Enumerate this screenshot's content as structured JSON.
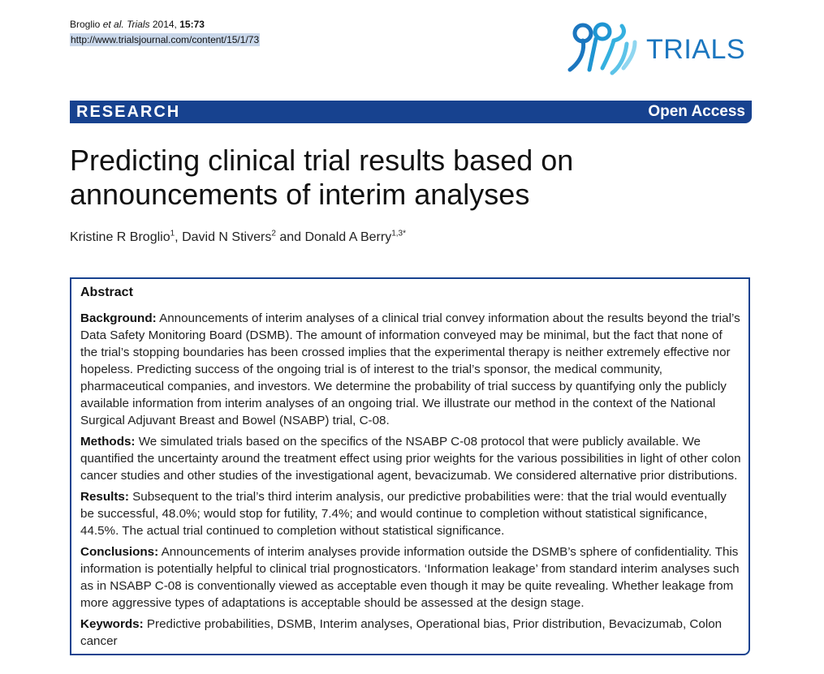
{
  "header": {
    "citation_authors": "Broglio",
    "citation_etal": "et al.",
    "citation_journal": "Trials",
    "citation_year": "2014,",
    "citation_volume": "15:73",
    "url": "http://www.trialsjournal.com/content/15/1/73",
    "logo_text": "TRIALS",
    "logo_color": "#1b76bf"
  },
  "bar": {
    "section": "RESEARCH",
    "access": "Open Access",
    "color": "#17428f"
  },
  "article": {
    "title": "Predicting clinical trial results based on announcements of interim analyses",
    "authors": [
      {
        "name": "Kristine R Broglio",
        "sup": "1"
      },
      {
        "name": "David N Stivers",
        "sup": "2"
      },
      {
        "name": "Donald A Berry",
        "sup": "1,3*"
      }
    ],
    "and": "and"
  },
  "abstract": {
    "title": "Abstract",
    "background_label": "Background:",
    "background": "Announcements of interim analyses of a clinical trial convey information about the results beyond the trial’s Data Safety Monitoring Board (DSMB). The amount of information conveyed may be minimal, but the fact that none of the trial’s stopping boundaries has been crossed implies that the experimental therapy is neither extremely effective nor hopeless. Predicting success of the ongoing trial is of interest to the trial’s sponsor, the medical community, pharmaceutical companies, and investors. We determine the probability of trial success by quantifying only the publicly available information from interim analyses of an ongoing trial. We illustrate our method in the context of the National Surgical Adjuvant Breast and Bowel (NSABP) trial, C-08.",
    "methods_label": "Methods:",
    "methods": "We simulated trials based on the specifics of the NSABP C-08 protocol that were publicly available. We quantified the uncertainty around the treatment effect using prior weights for the various possibilities in light of other colon cancer studies and other studies of the investigational agent, bevacizumab. We considered alternative prior distributions.",
    "results_label": "Results:",
    "results": "Subsequent to the trial’s third interim analysis, our predictive probabilities were: that the trial would eventually be successful, 48.0%; would stop for futility, 7.4%; and would continue to completion without statistical significance, 44.5%. The actual trial continued to completion without statistical significance.",
    "conclusions_label": "Conclusions:",
    "conclusions": "Announcements of interim analyses provide information outside the DSMB’s sphere of confidentiality. This information is potentially helpful to clinical trial prognosticators. ‘Information leakage’ from standard interim analyses such as in NSABP C-08 is conventionally viewed as acceptable even though it may be quite revealing. Whether leakage from more aggressive types of adaptations is acceptable should be assessed at the design stage.",
    "keywords_label": "Keywords:",
    "keywords": "Predictive probabilities, DSMB, Interim analyses, Operational bias, Prior distribution, Bevacizumab, Colon cancer"
  }
}
